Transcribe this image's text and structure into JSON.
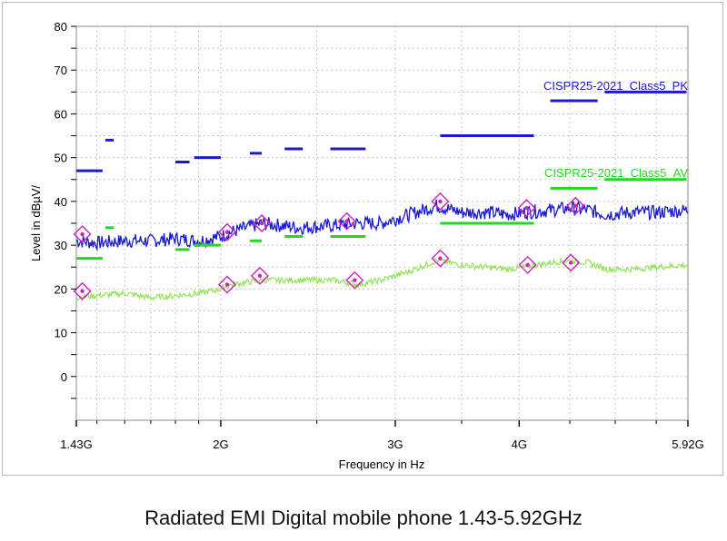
{
  "caption": "Radiated EMI Digital mobile phone 1.43-5.92GHz",
  "chart_data": {
    "type": "line",
    "title": "",
    "xlabel": "Frequency in Hz",
    "ylabel": "Level in dBµV/",
    "x_scale": "log",
    "xlim": [
      1.43,
      5.92
    ],
    "x_unit": "GHz",
    "ylim": [
      -10,
      80
    ],
    "grid": true,
    "y_ticks": [
      0,
      10,
      20,
      30,
      40,
      50,
      60,
      70,
      80
    ],
    "x_ticks": [
      {
        "value": 1.43,
        "label": "1.43G"
      },
      {
        "value": 2.0,
        "label": "2G"
      },
      {
        "value": 3.0,
        "label": "3G"
      },
      {
        "value": 4.0,
        "label": "4G"
      },
      {
        "value": 5.92,
        "label": "5.92G"
      }
    ],
    "series": [
      {
        "name": "",
        "color": "#1a1ad0",
        "x": [
          1.43,
          1.5,
          1.6,
          1.7,
          1.8,
          1.9,
          2.0,
          2.05,
          2.2,
          2.4,
          2.6,
          2.75,
          2.9,
          3.1,
          3.3,
          3.5,
          3.7,
          3.9,
          4.05,
          4.3,
          4.5,
          4.7,
          4.9,
          5.2,
          5.5,
          5.92
        ],
        "values": [
          31,
          30.5,
          31,
          31,
          31.5,
          31,
          32,
          33,
          35,
          34,
          34.5,
          35,
          35,
          37,
          39,
          37.5,
          37.5,
          37,
          37.5,
          38,
          38.5,
          38,
          37,
          37.5,
          37.5,
          38
        ]
      },
      {
        "name": "",
        "color": "#8de24f",
        "x": [
          1.43,
          1.5,
          1.6,
          1.7,
          1.8,
          1.9,
          2.0,
          2.05,
          2.2,
          2.4,
          2.6,
          2.75,
          2.9,
          3.1,
          3.3,
          3.5,
          3.7,
          3.9,
          4.05,
          4.3,
          4.5,
          4.7,
          4.9,
          5.2,
          5.5,
          5.92
        ],
        "values": [
          18,
          18.5,
          19,
          18,
          18.5,
          19,
          20,
          21,
          22,
          22,
          22,
          21,
          22,
          24,
          26.5,
          25.5,
          25,
          24.5,
          25,
          26,
          26.5,
          26,
          24.5,
          24.5,
          25,
          25.5
        ]
      }
    ],
    "limits": [
      {
        "name": "CISPR25-2021_Class5_PK",
        "color": "#1a1ad0",
        "segments": [
          [
            1.43,
            1.52,
            47
          ],
          [
            1.53,
            1.56,
            54
          ],
          [
            1.8,
            1.86,
            49
          ],
          [
            1.88,
            2.0,
            50
          ],
          [
            2.14,
            2.2,
            51
          ],
          [
            2.32,
            2.42,
            52
          ],
          [
            2.58,
            2.8,
            52
          ],
          [
            3.33,
            4.14,
            55
          ],
          [
            4.3,
            4.8,
            63
          ],
          [
            4.88,
            5.9,
            65
          ]
        ]
      },
      {
        "name": "CISPR25-2021_Class5_AV",
        "color": "#22d822",
        "segments": [
          [
            1.43,
            1.52,
            27
          ],
          [
            1.53,
            1.56,
            34
          ],
          [
            1.8,
            1.86,
            29
          ],
          [
            1.88,
            2.0,
            30
          ],
          [
            2.14,
            2.2,
            31
          ],
          [
            2.32,
            2.42,
            32
          ],
          [
            2.58,
            2.8,
            32
          ],
          [
            3.33,
            4.14,
            35
          ],
          [
            4.3,
            4.8,
            43
          ],
          [
            4.88,
            5.9,
            45
          ]
        ]
      }
    ],
    "markers": {
      "color": "#d020c0",
      "points": [
        {
          "x": 1.45,
          "y": 32.5
        },
        {
          "x": 2.03,
          "y": 33
        },
        {
          "x": 2.2,
          "y": 35
        },
        {
          "x": 2.68,
          "y": 35.5
        },
        {
          "x": 3.33,
          "y": 40
        },
        {
          "x": 4.07,
          "y": 38.5
        },
        {
          "x": 4.56,
          "y": 39
        },
        {
          "x": 1.45,
          "y": 19.5
        },
        {
          "x": 2.03,
          "y": 21
        },
        {
          "x": 2.19,
          "y": 23
        },
        {
          "x": 2.73,
          "y": 22
        },
        {
          "x": 3.33,
          "y": 27
        },
        {
          "x": 4.08,
          "y": 25.5
        },
        {
          "x": 4.51,
          "y": 26
        }
      ]
    }
  }
}
